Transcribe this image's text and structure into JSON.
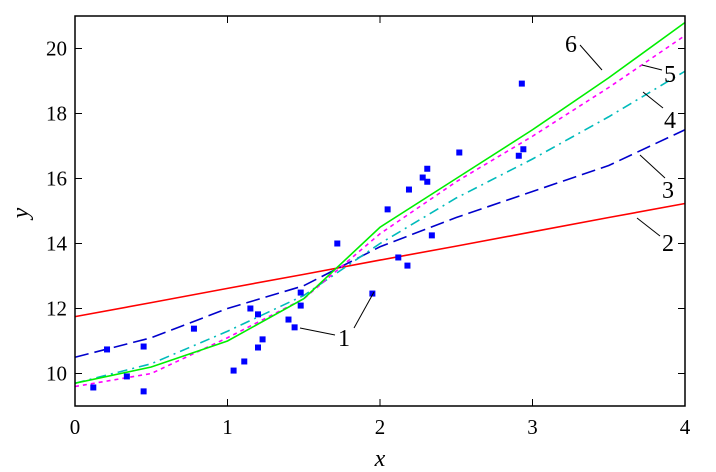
{
  "chart_data": {
    "type": "line",
    "title": "",
    "xlabel": "x",
    "ylabel": "y",
    "xlim": [
      0,
      4
    ],
    "ylim": [
      9,
      21
    ],
    "xticks": [
      "0",
      "1",
      "2",
      "3",
      "4"
    ],
    "yticks": [
      "10",
      "12",
      "14",
      "16",
      "18",
      "20"
    ],
    "grid": false,
    "scatter": {
      "name": "1",
      "color": "#0000ff",
      "points": [
        [
          0.12,
          9.57
        ],
        [
          0.21,
          10.74
        ],
        [
          0.34,
          9.91
        ],
        [
          0.45,
          10.83
        ],
        [
          0.45,
          9.45
        ],
        [
          0.78,
          11.38
        ],
        [
          1.04,
          10.09
        ],
        [
          1.11,
          10.37
        ],
        [
          1.15,
          12.0
        ],
        [
          1.2,
          11.82
        ],
        [
          1.2,
          10.8
        ],
        [
          1.23,
          11.05
        ],
        [
          1.4,
          11.66
        ],
        [
          1.44,
          11.42
        ],
        [
          1.48,
          12.09
        ],
        [
          1.48,
          12.49
        ],
        [
          1.72,
          14.0
        ],
        [
          1.95,
          12.46
        ],
        [
          2.05,
          15.05
        ],
        [
          2.12,
          13.57
        ],
        [
          2.18,
          13.32
        ],
        [
          2.19,
          15.66
        ],
        [
          2.28,
          16.03
        ],
        [
          2.31,
          15.9
        ],
        [
          2.31,
          16.3
        ],
        [
          2.34,
          14.25
        ],
        [
          2.52,
          16.8
        ],
        [
          2.91,
          16.7
        ],
        [
          2.94,
          16.9
        ],
        [
          2.93,
          18.92
        ]
      ]
    },
    "x": [
      0,
      0.5,
      1,
      1.5,
      2,
      2.5,
      3,
      3.5,
      4
    ],
    "series": [
      {
        "name": "2",
        "color": "#ff0000",
        "style": "solid",
        "values": [
          11.75,
          12.18,
          12.62,
          13.05,
          13.49,
          13.92,
          14.36,
          14.8,
          15.23
        ]
      },
      {
        "name": "3",
        "color": "#0000cc",
        "style": "dashed",
        "values": [
          10.5,
          11.1,
          12.0,
          12.7,
          13.9,
          14.8,
          15.6,
          16.4,
          17.5
        ]
      },
      {
        "name": "4",
        "color": "#00bbbb",
        "style": "dashdot",
        "values": [
          9.7,
          10.3,
          11.3,
          12.4,
          14.0,
          15.4,
          16.6,
          17.9,
          19.3
        ]
      },
      {
        "name": "5",
        "color": "#ff00ff",
        "style": "dotted",
        "values": [
          9.6,
          10.0,
          11.1,
          12.3,
          14.3,
          15.9,
          17.3,
          18.8,
          20.4
        ]
      },
      {
        "name": "6",
        "color": "#00ee00",
        "style": "solid",
        "values": [
          9.7,
          10.2,
          11.0,
          12.3,
          14.5,
          16.0,
          17.5,
          19.1,
          20.8
        ]
      }
    ],
    "annotations": [
      "1",
      "2",
      "3",
      "4",
      "5",
      "6"
    ]
  }
}
